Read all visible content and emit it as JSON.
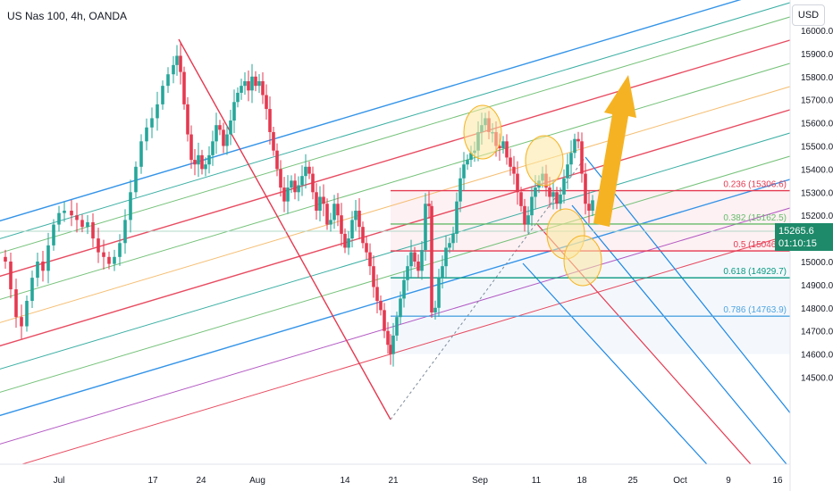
{
  "header": {
    "title": "US Nas 100, 4h, OANDA",
    "currency_button": "USD"
  },
  "price_tag": {
    "price": "15265.6",
    "countdown": "01:10:15",
    "color": "#1e8a6a"
  },
  "chart_data": {
    "type": "candlestick",
    "title": "US Nas 100, 4h, OANDA",
    "y_axis": {
      "ticks": [
        14500,
        14600,
        14700,
        14800,
        14900,
        15000,
        15100,
        15200,
        15300,
        15400,
        15500,
        15600,
        15700,
        15800,
        15900,
        16000
      ],
      "ylim": [
        14430,
        16055
      ],
      "position": "right"
    },
    "x_axis": {
      "tick_labels": [
        "Jul",
        "17",
        "24",
        "Aug",
        "14",
        "21",
        "Sep",
        "11",
        "18",
        "25",
        "Oct",
        "9",
        "16"
      ]
    },
    "grid": false,
    "price_path": [
      [
        0,
        15020
      ],
      [
        6,
        15000
      ],
      [
        12,
        14880
      ],
      [
        18,
        14760
      ],
      [
        24,
        14720
      ],
      [
        30,
        14830
      ],
      [
        36,
        14930
      ],
      [
        42,
        15000
      ],
      [
        48,
        14960
      ],
      [
        54,
        15070
      ],
      [
        60,
        15160
      ],
      [
        66,
        15210
      ],
      [
        72,
        15220
      ],
      [
        80,
        15200
      ],
      [
        86,
        15180
      ],
      [
        92,
        15150
      ],
      [
        98,
        15170
      ],
      [
        104,
        15100
      ],
      [
        110,
        15040
      ],
      [
        116,
        15020
      ],
      [
        122,
        14990
      ],
      [
        128,
        15020
      ],
      [
        134,
        15080
      ],
      [
        140,
        15180
      ],
      [
        146,
        15300
      ],
      [
        152,
        15410
      ],
      [
        158,
        15520
      ],
      [
        164,
        15580
      ],
      [
        170,
        15620
      ],
      [
        176,
        15680
      ],
      [
        182,
        15760
      ],
      [
        188,
        15810
      ],
      [
        194,
        15850
      ],
      [
        198,
        15890
      ],
      [
        202,
        15820
      ],
      [
        206,
        15680
      ],
      [
        210,
        15550
      ],
      [
        214,
        15440
      ],
      [
        218,
        15420
      ],
      [
        222,
        15460
      ],
      [
        226,
        15400
      ],
      [
        230,
        15420
      ],
      [
        234,
        15460
      ],
      [
        238,
        15520
      ],
      [
        242,
        15590
      ],
      [
        246,
        15570
      ],
      [
        250,
        15500
      ],
      [
        254,
        15550
      ],
      [
        258,
        15610
      ],
      [
        262,
        15690
      ],
      [
        266,
        15730
      ],
      [
        270,
        15760
      ],
      [
        274,
        15780
      ],
      [
        278,
        15740
      ],
      [
        282,
        15800
      ],
      [
        286,
        15760
      ],
      [
        290,
        15780
      ],
      [
        294,
        15720
      ],
      [
        298,
        15660
      ],
      [
        302,
        15560
      ],
      [
        306,
        15480
      ],
      [
        310,
        15400
      ],
      [
        314,
        15320
      ],
      [
        318,
        15260
      ],
      [
        322,
        15320
      ],
      [
        326,
        15350
      ],
      [
        330,
        15300
      ],
      [
        334,
        15330
      ],
      [
        338,
        15370
      ],
      [
        342,
        15410
      ],
      [
        346,
        15380
      ],
      [
        350,
        15300
      ],
      [
        354,
        15220
      ],
      [
        358,
        15280
      ],
      [
        362,
        15250
      ],
      [
        366,
        15160
      ],
      [
        370,
        15180
      ],
      [
        374,
        15250
      ],
      [
        378,
        15200
      ],
      [
        382,
        15120
      ],
      [
        386,
        15060
      ],
      [
        390,
        15100
      ],
      [
        394,
        15180
      ],
      [
        398,
        15220
      ],
      [
        402,
        15150
      ],
      [
        406,
        15080
      ],
      [
        410,
        15040
      ],
      [
        414,
        14980
      ],
      [
        418,
        14890
      ],
      [
        422,
        14830
      ],
      [
        426,
        14790
      ],
      [
        430,
        14700
      ],
      [
        434,
        14640
      ],
      [
        437,
        14600
      ],
      [
        440,
        14680
      ],
      [
        444,
        14760
      ],
      [
        448,
        14840
      ],
      [
        452,
        14920
      ],
      [
        456,
        14980
      ],
      [
        460,
        15040
      ],
      [
        464,
        15000
      ],
      [
        468,
        14960
      ],
      [
        472,
        15050
      ],
      [
        476,
        15250
      ],
      [
        480,
        15240
      ],
      [
        483,
        14780
      ],
      [
        487,
        14800
      ],
      [
        491,
        14930
      ],
      [
        495,
        14980
      ],
      [
        499,
        15060
      ],
      [
        503,
        15080
      ],
      [
        507,
        15120
      ],
      [
        511,
        15260
      ],
      [
        515,
        15360
      ],
      [
        519,
        15420
      ],
      [
        523,
        15440
      ],
      [
        527,
        15470
      ],
      [
        531,
        15480
      ],
      [
        535,
        15560
      ],
      [
        539,
        15590
      ],
      [
        543,
        15620
      ],
      [
        547,
        15560
      ],
      [
        551,
        15560
      ],
      [
        555,
        15500
      ],
      [
        559,
        15490
      ],
      [
        563,
        15520
      ],
      [
        567,
        15450
      ],
      [
        571,
        15410
      ],
      [
        575,
        15380
      ],
      [
        579,
        15300
      ],
      [
        583,
        15240
      ],
      [
        587,
        15160
      ],
      [
        591,
        15200
      ],
      [
        595,
        15280
      ],
      [
        599,
        15320
      ],
      [
        603,
        15350
      ],
      [
        607,
        15380
      ],
      [
        611,
        15320
      ],
      [
        615,
        15280
      ],
      [
        619,
        15300
      ],
      [
        623,
        15250
      ],
      [
        627,
        15290
      ],
      [
        631,
        15360
      ],
      [
        635,
        15420
      ],
      [
        639,
        15470
      ],
      [
        643,
        15530
      ],
      [
        647,
        15520
      ],
      [
        651,
        15380
      ],
      [
        655,
        15250
      ],
      [
        659,
        15220
      ],
      [
        663,
        15265
      ]
    ],
    "fibonacci_levels": [
      {
        "ratio": "0.236",
        "price": 15306.6,
        "label": "0.236 (15306.6)",
        "color": "#e53950"
      },
      {
        "ratio": "0.382",
        "price": 15162.5,
        "label": "0.382 (15162.5)",
        "color": "#66bb6a"
      },
      {
        "ratio": "0.5",
        "price": 15046.1,
        "label": "0.5 (15046.1)",
        "color": "#e53950"
      },
      {
        "ratio": "0.618",
        "price": 14929.7,
        "label": "0.618 (14929.7)",
        "color": "#089981"
      },
      {
        "ratio": "0.786",
        "price": 14763.9,
        "label": "0.786 (14763.9)",
        "color": "#4fa3e0"
      }
    ],
    "colors": {
      "bullish": "#26a69a",
      "bearish": "#e53950",
      "pitchfork_median": "#e53950",
      "annotation_arrow": "#f5b323",
      "highlight_circle": "#fbe7a1"
    }
  }
}
